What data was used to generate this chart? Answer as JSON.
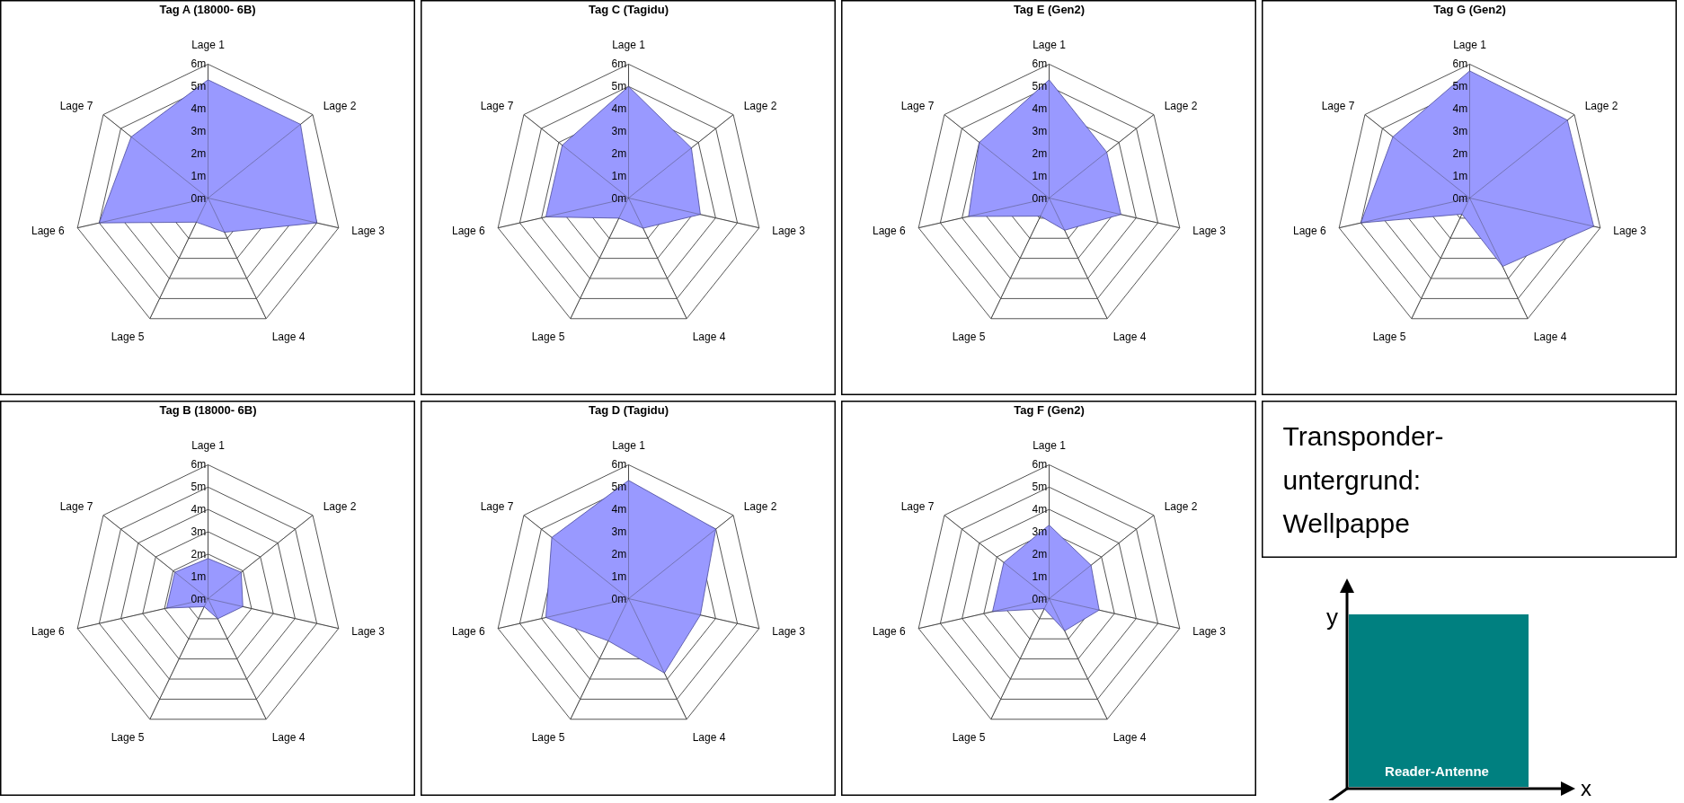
{
  "chart_data": [
    {
      "type": "radar",
      "title": "Tag A (18000- 6B)",
      "categories": [
        "Lage 1",
        "Lage 2",
        "Lage 3",
        "Lage 4",
        "Lage 5",
        "Lage 6",
        "Lage 7"
      ],
      "ylim": [
        0,
        6
      ],
      "yticks": [
        {
          "value": 0,
          "label": "0m"
        },
        {
          "value": 1,
          "label": "1m"
        },
        {
          "value": 2,
          "label": "2m"
        },
        {
          "value": 3,
          "label": "3m"
        },
        {
          "value": 4,
          "label": "4m"
        },
        {
          "value": 5,
          "label": "5m"
        },
        {
          "value": 6,
          "label": "6m"
        }
      ],
      "grid": true,
      "series": [
        {
          "color": "#9999ff",
          "values": [
            5.3,
            5.3,
            5.0,
            1.7,
            1.2,
            5.0,
            4.4
          ]
        }
      ]
    },
    {
      "type": "radar",
      "title": "Tag C (Tagidu)",
      "categories": [
        "Lage 1",
        "Lage 2",
        "Lage 3",
        "Lage 4",
        "Lage 5",
        "Lage 6",
        "Lage 7"
      ],
      "ylim": [
        0,
        6
      ],
      "yticks": [
        {
          "value": 0,
          "label": "0m"
        },
        {
          "value": 1,
          "label": "1m"
        },
        {
          "value": 2,
          "label": "2m"
        },
        {
          "value": 3,
          "label": "3m"
        },
        {
          "value": 4,
          "label": "4m"
        },
        {
          "value": 5,
          "label": "5m"
        },
        {
          "value": 6,
          "label": "6m"
        }
      ],
      "grid": true,
      "series": [
        {
          "color": "#9999ff",
          "values": [
            5.0,
            3.6,
            3.3,
            1.5,
            1.0,
            3.8,
            3.8
          ]
        }
      ]
    },
    {
      "type": "radar",
      "title": "Tag E (Gen2)",
      "categories": [
        "Lage 1",
        "Lage 2",
        "Lage 3",
        "Lage 4",
        "Lage 5",
        "Lage 6",
        "Lage 7"
      ],
      "ylim": [
        0,
        6
      ],
      "yticks": [
        {
          "value": 0,
          "label": "0m"
        },
        {
          "value": 1,
          "label": "1m"
        },
        {
          "value": 2,
          "label": "2m"
        },
        {
          "value": 3,
          "label": "3m"
        },
        {
          "value": 4,
          "label": "4m"
        },
        {
          "value": 5,
          "label": "5m"
        },
        {
          "value": 6,
          "label": "6m"
        }
      ],
      "grid": true,
      "series": [
        {
          "color": "#9999ff",
          "values": [
            5.3,
            3.3,
            3.3,
            1.6,
            0.9,
            3.7,
            4.0
          ]
        }
      ]
    },
    {
      "type": "radar",
      "title": "Tag G (Gen2)",
      "categories": [
        "Lage 1",
        "Lage 2",
        "Lage 3",
        "Lage 4",
        "Lage 5",
        "Lage 6",
        "Lage 7"
      ],
      "ylim": [
        0,
        6
      ],
      "yticks": [
        {
          "value": 0,
          "label": "0m"
        },
        {
          "value": 1,
          "label": "1m"
        },
        {
          "value": 2,
          "label": "2m"
        },
        {
          "value": 3,
          "label": "3m"
        },
        {
          "value": 4,
          "label": "4m"
        },
        {
          "value": 5,
          "label": "5m"
        },
        {
          "value": 6,
          "label": "6m"
        }
      ],
      "grid": true,
      "series": [
        {
          "color": "#9999ff",
          "values": [
            5.7,
            5.6,
            5.7,
            3.4,
            0.8,
            5.0,
            4.4
          ]
        }
      ]
    },
    {
      "type": "radar",
      "title": "Tag B (18000- 6B)",
      "categories": [
        "Lage 1",
        "Lage 2",
        "Lage 3",
        "Lage 4",
        "Lage 5",
        "Lage 6",
        "Lage 7"
      ],
      "ylim": [
        0,
        6
      ],
      "yticks": [
        {
          "value": 0,
          "label": "0m"
        },
        {
          "value": 1,
          "label": "1m"
        },
        {
          "value": 2,
          "label": "2m"
        },
        {
          "value": 3,
          "label": "3m"
        },
        {
          "value": 4,
          "label": "4m"
        },
        {
          "value": 5,
          "label": "5m"
        },
        {
          "value": 6,
          "label": "6m"
        }
      ],
      "grid": true,
      "series": [
        {
          "color": "#9999ff",
          "values": [
            1.8,
            1.9,
            1.6,
            1.0,
            0.4,
            1.9,
            1.9
          ]
        }
      ]
    },
    {
      "type": "radar",
      "title": "Tag D (Tagidu)",
      "categories": [
        "Lage 1",
        "Lage 2",
        "Lage 3",
        "Lage 4",
        "Lage 5",
        "Lage 6",
        "Lage 7"
      ],
      "ylim": [
        0,
        6
      ],
      "yticks": [
        {
          "value": 0,
          "label": "0m"
        },
        {
          "value": 1,
          "label": "1m"
        },
        {
          "value": 2,
          "label": "2m"
        },
        {
          "value": 3,
          "label": "3m"
        },
        {
          "value": 4,
          "label": "4m"
        },
        {
          "value": 5,
          "label": "5m"
        },
        {
          "value": 6,
          "label": "6m"
        }
      ],
      "grid": true,
      "series": [
        {
          "color": "#9999ff",
          "values": [
            5.3,
            5.0,
            3.3,
            3.7,
            2.1,
            3.8,
            4.4
          ]
        }
      ]
    },
    {
      "type": "radar",
      "title": "Tag F (Gen2)",
      "categories": [
        "Lage 1",
        "Lage 2",
        "Lage 3",
        "Lage 4",
        "Lage 5",
        "Lage 6",
        "Lage 7"
      ],
      "ylim": [
        0,
        6
      ],
      "yticks": [
        {
          "value": 0,
          "label": "0m"
        },
        {
          "value": 1,
          "label": "1m"
        },
        {
          "value": 2,
          "label": "2m"
        },
        {
          "value": 3,
          "label": "3m"
        },
        {
          "value": 4,
          "label": "4m"
        },
        {
          "value": 5,
          "label": "5m"
        },
        {
          "value": 6,
          "label": "6m"
        }
      ],
      "grid": true,
      "series": [
        {
          "color": "#9999ff",
          "values": [
            3.3,
            2.4,
            2.3,
            1.6,
            0.5,
            2.6,
            2.6
          ]
        }
      ]
    },
    {
      "type": "other",
      "annotations": [
        "Transponder-untergrund:",
        "Wellpappe"
      ]
    },
    {
      "type": "other",
      "annotations": [
        "y",
        "x",
        "Reader-Antenne"
      ]
    }
  ]
}
